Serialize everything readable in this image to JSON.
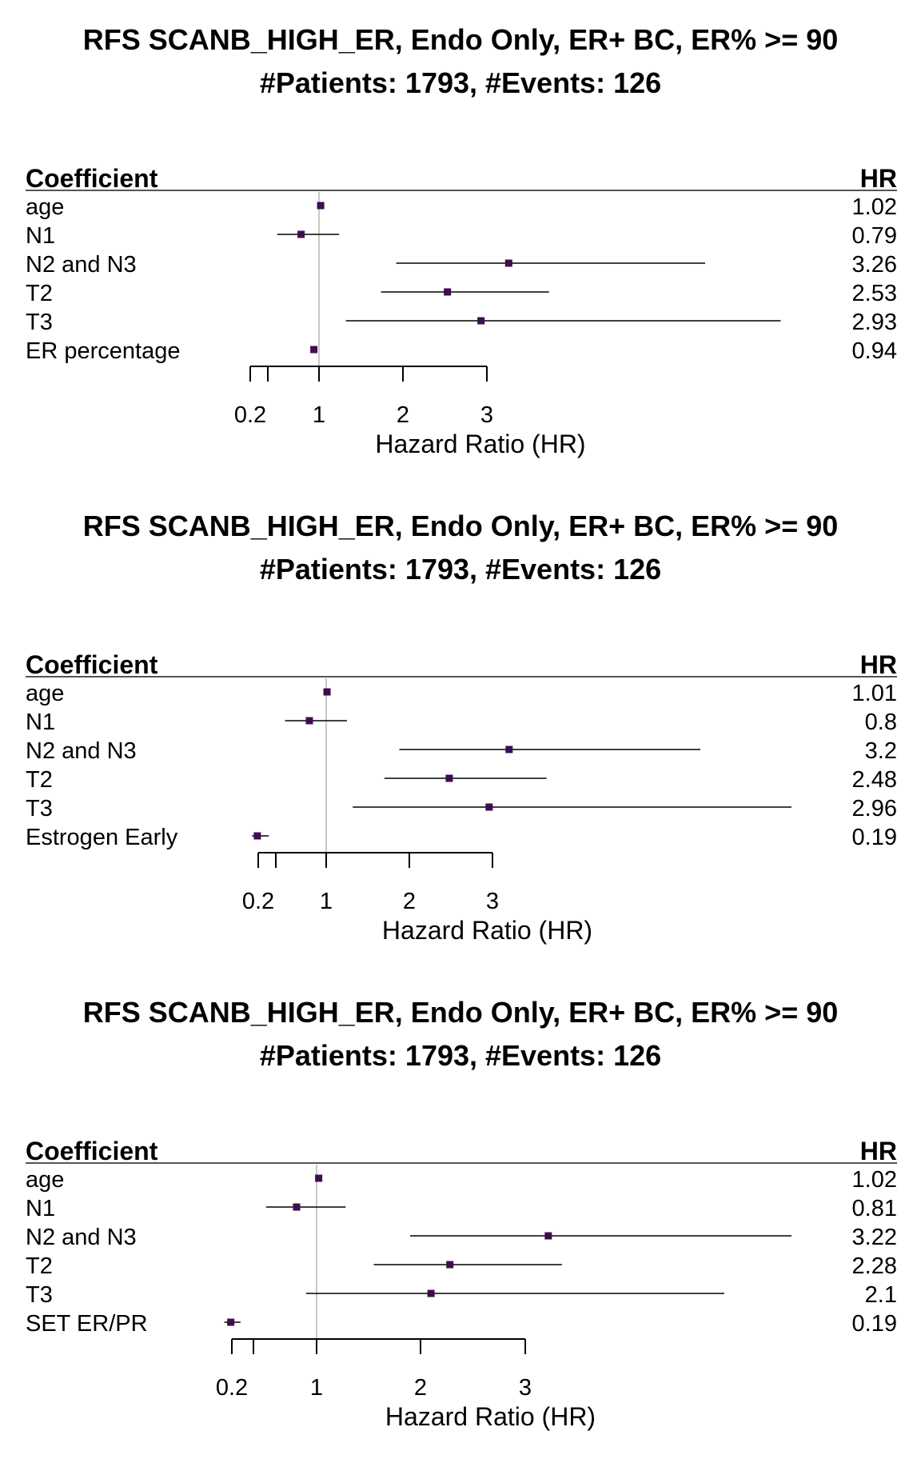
{
  "chart_data": [
    {
      "type": "forest",
      "title": "RFS SCANB_HIGH_ER, Endo Only, ER+ BC, ER% >= 90",
      "subtitle": "#Patients: 1793, #Events: 126",
      "col_label_left": "Coefficient",
      "col_label_right": "HR",
      "xlabel": "Hazard Ratio (HR)",
      "xticks": [
        0.2,
        0.4,
        1,
        2,
        3
      ],
      "xtick_labels": [
        "0.2",
        "",
        "1",
        "2",
        "3"
      ],
      "reference_line": 1,
      "rows": [
        {
          "label": "age",
          "hr": 1.02,
          "hr_text": "1.02",
          "lo": 1.01,
          "hi": 1.03
        },
        {
          "label": "N1",
          "hr": 0.79,
          "hr_text": "0.79",
          "lo": 0.51,
          "hi": 1.24
        },
        {
          "label": "N2 and N3",
          "hr": 3.26,
          "hr_text": "3.26",
          "lo": 1.92,
          "hi": 5.6
        },
        {
          "label": "T2",
          "hr": 2.53,
          "hr_text": "2.53",
          "lo": 1.74,
          "hi": 3.74
        },
        {
          "label": "T3",
          "hr": 2.93,
          "hr_text": "2.93",
          "lo": 1.32,
          "hi": 6.5
        },
        {
          "label": "ER percentage",
          "hr": 0.94,
          "hr_text": "0.94",
          "lo": 0.91,
          "hi": 0.97
        }
      ]
    },
    {
      "type": "forest",
      "title": "RFS SCANB_HIGH_ER, Endo Only, ER+ BC, ER% >= 90",
      "subtitle": "#Patients: 1793, #Events: 126",
      "col_label_left": "Coefficient",
      "col_label_right": "HR",
      "xlabel": "Hazard Ratio (HR)",
      "xticks": [
        0.2,
        0.4,
        1,
        2,
        3
      ],
      "xtick_labels": [
        "0.2",
        "",
        "1",
        "2",
        "3"
      ],
      "reference_line": 1,
      "rows": [
        {
          "label": "age",
          "hr": 1.01,
          "hr_text": "1.01",
          "lo": 1.0,
          "hi": 1.02
        },
        {
          "label": "N1",
          "hr": 0.8,
          "hr_text": "0.8",
          "lo": 0.51,
          "hi": 1.25
        },
        {
          "label": "N2 and N3",
          "hr": 3.2,
          "hr_text": "3.2",
          "lo": 1.88,
          "hi": 5.5
        },
        {
          "label": "T2",
          "hr": 2.48,
          "hr_text": "2.48",
          "lo": 1.7,
          "hi": 3.65
        },
        {
          "label": "T3",
          "hr": 2.96,
          "hr_text": "2.96",
          "lo": 1.32,
          "hi": 6.6
        },
        {
          "label": "Estrogen Early",
          "hr": 0.19,
          "hr_text": "0.19",
          "lo": 0.13,
          "hi": 0.32
        }
      ]
    },
    {
      "type": "forest",
      "title": "RFS SCANB_HIGH_ER, Endo Only, ER+ BC, ER% >= 90",
      "subtitle": "#Patients: 1793, #Events: 126",
      "col_label_left": "Coefficient",
      "col_label_right": "HR",
      "xlabel": "Hazard Ratio (HR)",
      "xticks": [
        0.2,
        0.4,
        1,
        2,
        3
      ],
      "xtick_labels": [
        "0.2",
        "",
        "1",
        "2",
        "3"
      ],
      "reference_line": 1,
      "rows": [
        {
          "label": "age",
          "hr": 1.02,
          "hr_text": "1.02",
          "lo": 1.01,
          "hi": 1.03
        },
        {
          "label": "N1",
          "hr": 0.81,
          "hr_text": "0.81",
          "lo": 0.52,
          "hi": 1.28
        },
        {
          "label": "N2 and N3",
          "hr": 3.22,
          "hr_text": "3.22",
          "lo": 1.9,
          "hi": 5.6
        },
        {
          "label": "T2",
          "hr": 2.28,
          "hr_text": "2.28",
          "lo": 1.55,
          "hi": 3.35
        },
        {
          "label": "T3",
          "hr": 2.1,
          "hr_text": "2.1",
          "lo": 0.9,
          "hi": 4.9
        },
        {
          "label": "SET ER/PR",
          "hr": 0.19,
          "hr_text": "0.19",
          "lo": 0.13,
          "hi": 0.28
        }
      ]
    }
  ],
  "colors": {
    "point": "#3f0d4f",
    "ci_line": "#000000",
    "reference_line": "#c8c8c8",
    "header_rule": "#555555"
  }
}
